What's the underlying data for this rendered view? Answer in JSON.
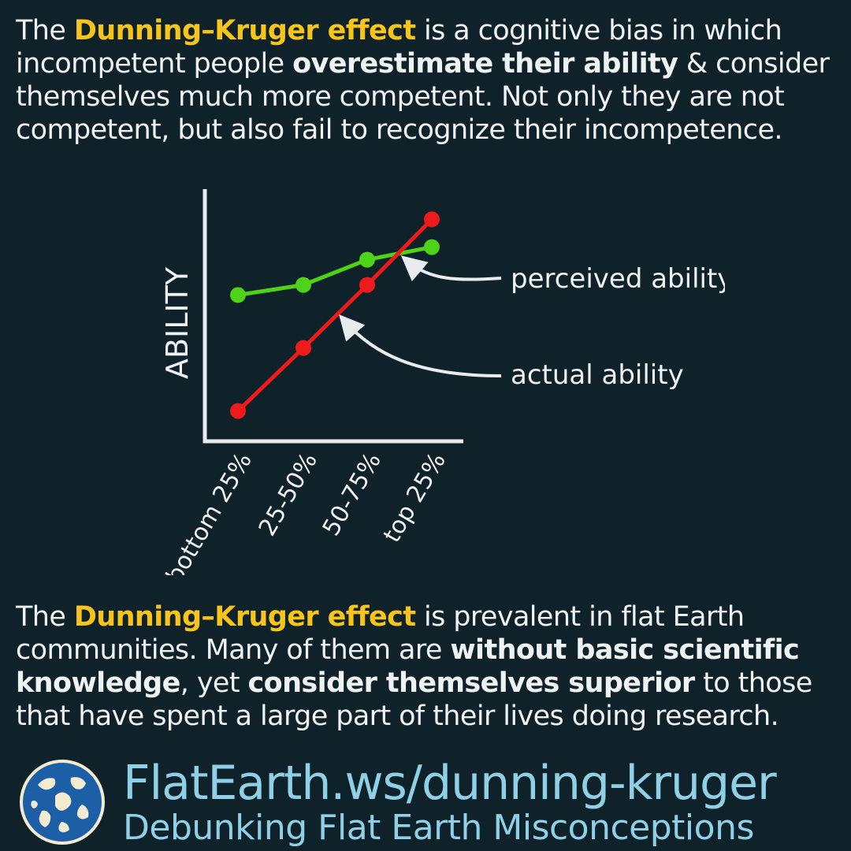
{
  "intro": {
    "p1": "The ",
    "term": "Dunning–Kruger effect",
    "p2": " is a cognitive bias in which incompetent people ",
    "b1": "overestimate their ability",
    "p3": " & consider themselves much more competent. Not only they are not competent, but also fail to recognize their incompetence."
  },
  "chart_data": {
    "type": "line",
    "ylabel": "ABILITY",
    "xlabel": "",
    "categories": [
      "bottom 25%",
      "25-50%",
      "50-75%",
      "top 25%"
    ],
    "series": [
      {
        "name": "perceived ability",
        "color": "#4fd21a",
        "values": [
          58,
          62,
          72,
          77
        ]
      },
      {
        "name": "actual ability",
        "color": "#ef1b1b",
        "values": [
          12,
          37,
          62,
          88
        ]
      }
    ],
    "ylim": [
      0,
      100
    ],
    "grid": false
  },
  "outro": {
    "p1": "The ",
    "term": "Dunning–Kruger effect",
    "p2": " is prevalent in flat Earth communities. Many of them are ",
    "b1": "without basic scientific knowledge",
    "p3": ", yet ",
    "b2": "consider themselves superior",
    "p4": " to those that have spent a large part of their lives doing research."
  },
  "footer": {
    "url": "FlatEarth.ws/dunning-kruger",
    "tagline": "Debunking Flat Earth Misconceptions",
    "logo_icon": "globe-map-icon"
  }
}
